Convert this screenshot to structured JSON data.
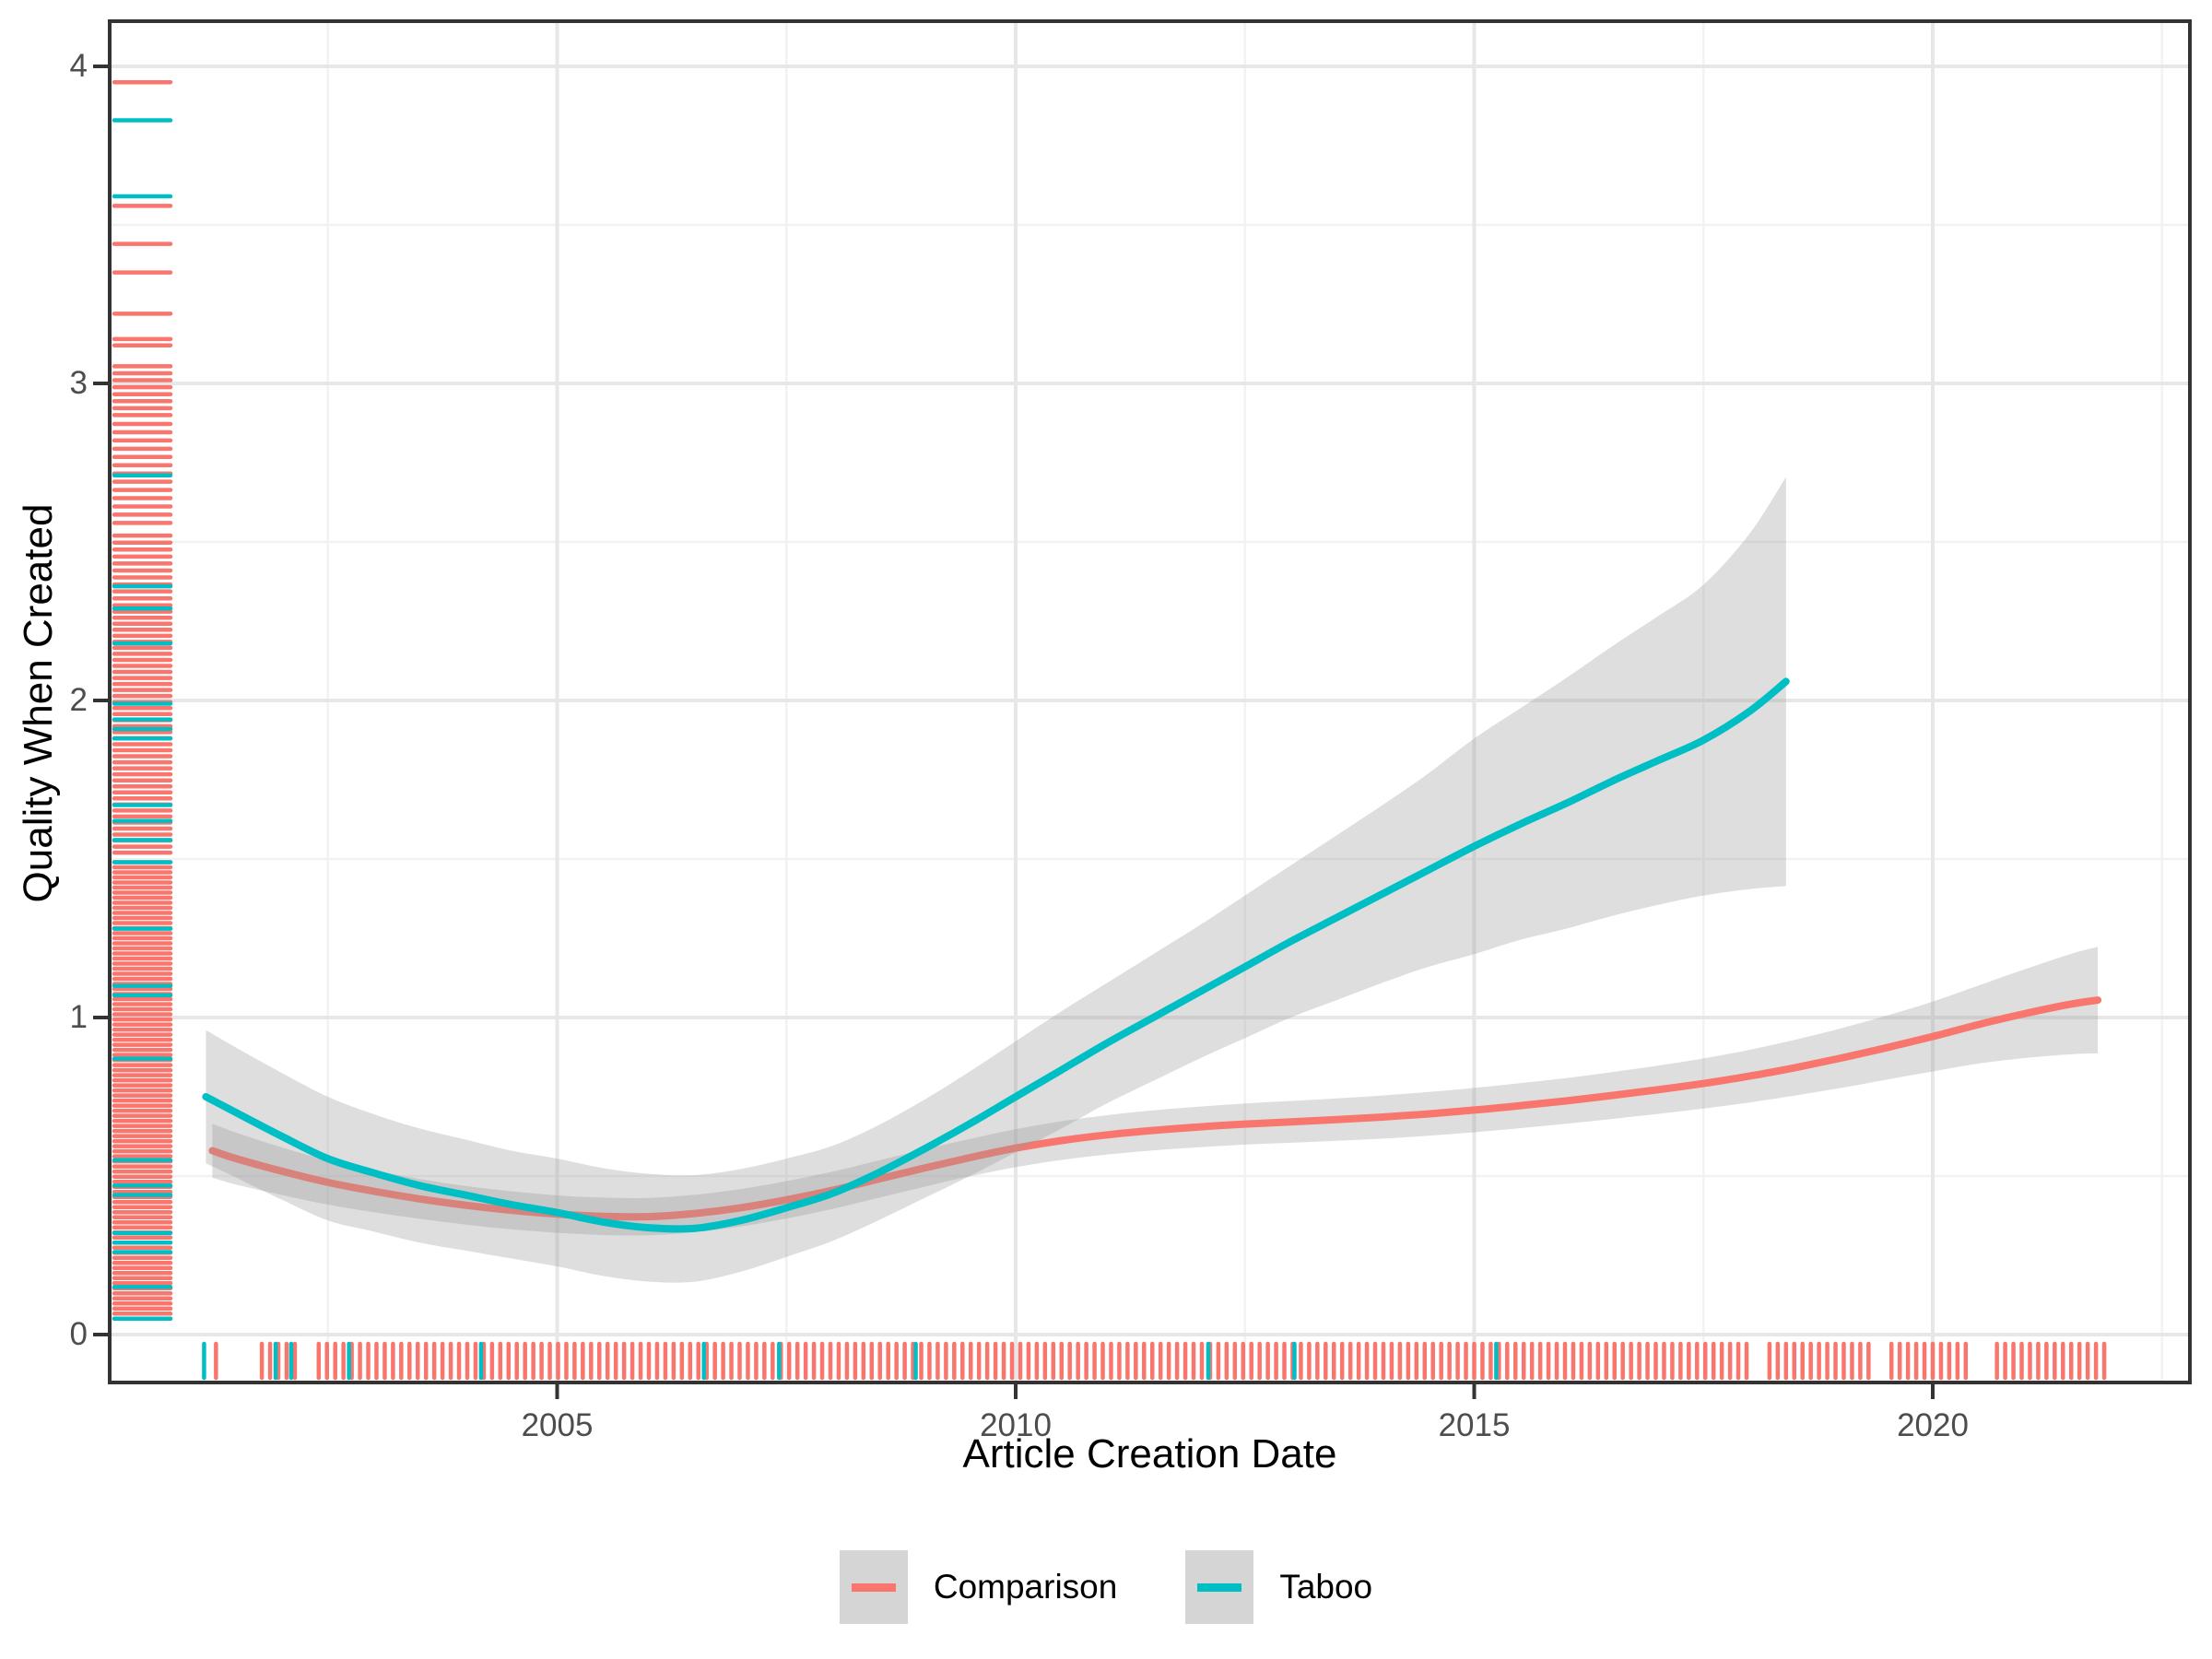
{
  "axes": {
    "x": {
      "title": "Article Creation Date",
      "ticks": [
        {
          "value": 2005,
          "label": "2005"
        },
        {
          "value": 2010,
          "label": "2010"
        },
        {
          "value": 2015,
          "label": "2015"
        },
        {
          "value": 2020,
          "label": "2020"
        }
      ],
      "minor_ticks": [
        2002.5,
        2007.5,
        2012.5,
        2017.5,
        2022.5
      ]
    },
    "y": {
      "title": "Quality When Created",
      "ticks": [
        {
          "value": 0,
          "label": "0"
        },
        {
          "value": 1,
          "label": "1"
        },
        {
          "value": 2,
          "label": "2"
        },
        {
          "value": 3,
          "label": "3"
        },
        {
          "value": 4,
          "label": "4"
        }
      ],
      "minor_ticks": [
        0.5,
        1.5,
        2.5,
        3.5
      ]
    }
  },
  "legend": {
    "items": [
      {
        "label": "Comparison",
        "color": "#F8766D"
      },
      {
        "label": "Taboo",
        "color": "#00BFC4"
      }
    ],
    "key_fill": "#d5d5d5"
  },
  "colors": {
    "comparison": "#F8766D",
    "taboo": "#00BFC4",
    "ribbon": "#999999",
    "ribbon_opacity": 0.32,
    "grid_major": "#e7e7e7",
    "grid_minor": "#f2f2f2",
    "panel_border": "#333333",
    "tick_text": "#4d4d4d"
  },
  "chart_data": {
    "type": "line",
    "subtype": "gam-smooth-with-ci-ribbons-and-rugs",
    "title": "",
    "xlabel": "Article Creation Date",
    "ylabel": "Quality When Created",
    "xlim": [
      2000.1,
      2022.8
    ],
    "ylim": [
      -0.15,
      4.14
    ],
    "grid": true,
    "legend_position": "bottom",
    "series": [
      {
        "name": "Comparison",
        "color": "#F8766D",
        "x": [
          2001.24,
          2001.5,
          2002,
          2002.5,
          2003,
          2003.5,
          2004,
          2004.5,
          2005,
          2005.5,
          2006,
          2006.5,
          2007,
          2007.5,
          2008,
          2008.5,
          2009,
          2009.5,
          2010,
          2010.5,
          2011,
          2011.5,
          2012,
          2012.5,
          2013,
          2013.5,
          2014,
          2014.5,
          2015,
          2015.5,
          2016,
          2016.5,
          2017,
          2017.5,
          2018,
          2018.5,
          2019,
          2019.5,
          2020,
          2020.5,
          2021,
          2021.5,
          2021.8
        ],
        "y": [
          0.58,
          0.555,
          0.515,
          0.48,
          0.452,
          0.428,
          0.408,
          0.392,
          0.38,
          0.373,
          0.372,
          0.382,
          0.4,
          0.425,
          0.455,
          0.49,
          0.525,
          0.558,
          0.588,
          0.612,
          0.63,
          0.644,
          0.655,
          0.664,
          0.671,
          0.678,
          0.686,
          0.696,
          0.708,
          0.722,
          0.737,
          0.754,
          0.772,
          0.792,
          0.815,
          0.842,
          0.872,
          0.905,
          0.94,
          0.978,
          1.012,
          1.042,
          1.055
        ],
        "ci": [
          0.085,
          0.082,
          0.075,
          0.07,
          0.066,
          0.063,
          0.061,
          0.06,
          0.059,
          0.059,
          0.059,
          0.059,
          0.059,
          0.059,
          0.059,
          0.059,
          0.059,
          0.059,
          0.06,
          0.061,
          0.062,
          0.063,
          0.064,
          0.065,
          0.066,
          0.067,
          0.068,
          0.069,
          0.07,
          0.071,
          0.072,
          0.074,
          0.076,
          0.079,
          0.083,
          0.088,
          0.094,
          0.101,
          0.11,
          0.123,
          0.14,
          0.158,
          0.168
        ]
      },
      {
        "name": "Taboo",
        "color": "#00BFC4",
        "x": [
          2001.17,
          2001.5,
          2002,
          2002.5,
          2003,
          2003.5,
          2004,
          2004.5,
          2005,
          2005.5,
          2006,
          2006.5,
          2007,
          2007.5,
          2008,
          2008.5,
          2009,
          2009.5,
          2010,
          2010.5,
          2011,
          2011.5,
          2012,
          2012.5,
          2013,
          2013.5,
          2014,
          2014.5,
          2015,
          2015.5,
          2016,
          2016.5,
          2017,
          2017.5,
          2018,
          2018.4
        ],
        "y": [
          0.75,
          0.7,
          0.625,
          0.555,
          0.51,
          0.47,
          0.44,
          0.41,
          0.385,
          0.355,
          0.337,
          0.335,
          0.36,
          0.4,
          0.445,
          0.51,
          0.585,
          0.665,
          0.75,
          0.835,
          0.92,
          1.0,
          1.08,
          1.16,
          1.24,
          1.315,
          1.39,
          1.465,
          1.54,
          1.61,
          1.675,
          1.745,
          1.81,
          1.875,
          1.965,
          2.06
        ],
        "ci": [
          0.21,
          0.205,
          0.2,
          0.195,
          0.185,
          0.18,
          0.175,
          0.17,
          0.17,
          0.17,
          0.17,
          0.168,
          0.162,
          0.155,
          0.15,
          0.15,
          0.155,
          0.165,
          0.175,
          0.185,
          0.19,
          0.2,
          0.21,
          0.225,
          0.24,
          0.26,
          0.28,
          0.305,
          0.34,
          0.365,
          0.395,
          0.425,
          0.455,
          0.49,
          0.56,
          0.645
        ]
      }
    ],
    "rug_bottom": {
      "comparison_singles": [
        2001.28
      ],
      "comparison_segments": [
        {
          "from": 2001.78,
          "to": 2002.22,
          "step": 0.09
        },
        {
          "from": 2002.4,
          "to": 2017.98,
          "step": 0.09
        },
        {
          "from": 2018.22,
          "to": 2019.3,
          "step": 0.09
        },
        {
          "from": 2019.55,
          "to": 2020.4,
          "step": 0.09
        },
        {
          "from": 2020.7,
          "to": 2021.87,
          "step": 0.09
        }
      ],
      "taboo": [
        2001.15,
        2001.93,
        2002.1,
        2002.73,
        2004.17,
        2006.6,
        2007.42,
        2008.91,
        2012.1,
        2013.04,
        2015.24
      ]
    },
    "rug_left": {
      "comparison_singles": [
        3.95,
        3.56,
        3.44,
        3.35,
        3.22,
        3.14,
        3.12
      ],
      "comparison_segments": [
        {
          "from": 2.9,
          "to": 3.06,
          "step": 0.022
        },
        {
          "from": 2.56,
          "to": 2.88,
          "step": 0.026
        },
        {
          "from": 2.3,
          "to": 2.54,
          "step": 0.022
        },
        {
          "from": 1.52,
          "to": 2.28,
          "step": 0.019
        },
        {
          "from": 0.05,
          "to": 1.5,
          "step": 0.016
        }
      ],
      "taboo": [
        3.83,
        3.59,
        2.71,
        2.36,
        2.29,
        2.18,
        1.99,
        1.94,
        1.91,
        1.88,
        1.67,
        1.62,
        1.56,
        1.49,
        1.28,
        1.1,
        1.07,
        0.87,
        0.55,
        0.47,
        0.44,
        0.32,
        0.29,
        0.26,
        0.15,
        0.05
      ]
    }
  }
}
